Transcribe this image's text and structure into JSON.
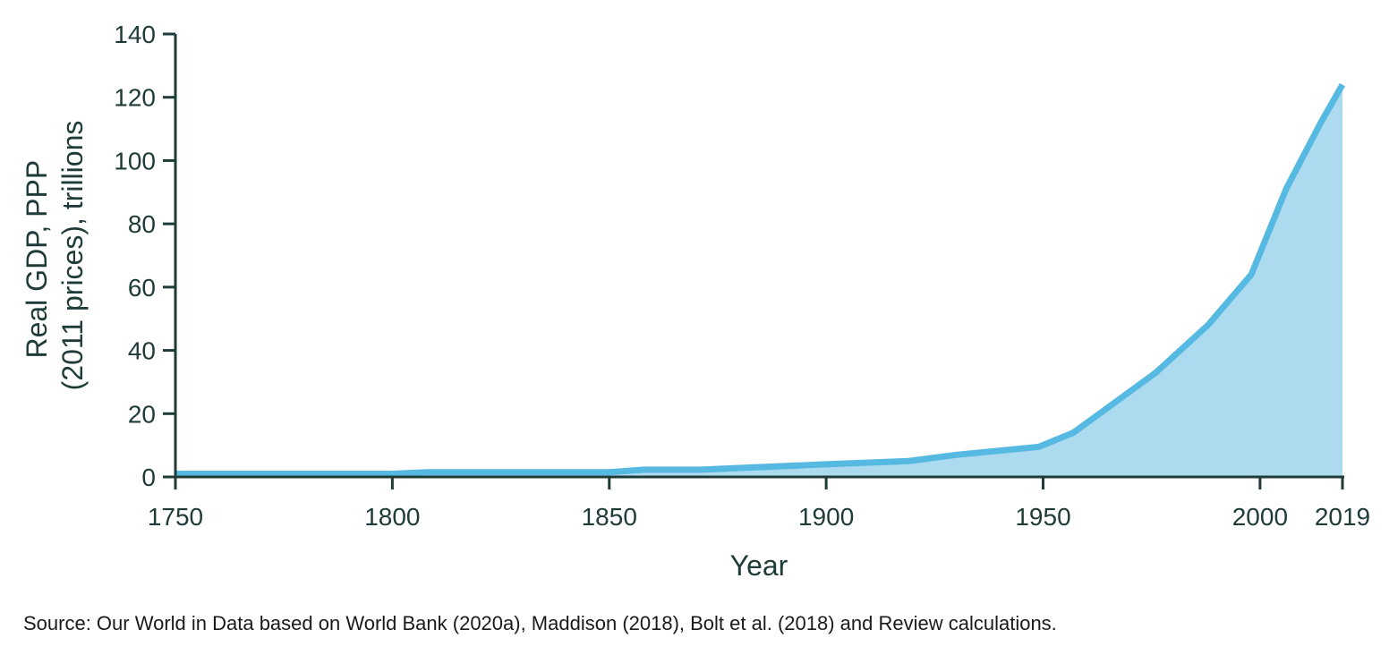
{
  "chart_data": {
    "type": "area",
    "ylabel_lines": [
      "Real GDP, PPP",
      "(2011 prices), trillions"
    ],
    "xlabel": "Year",
    "xlim": [
      1750,
      2019
    ],
    "ylim": [
      0,
      140
    ],
    "x_ticks": [
      1750,
      1800,
      1850,
      1900,
      1950,
      2000,
      2019
    ],
    "y_ticks": [
      0,
      20,
      40,
      60,
      80,
      100,
      120,
      140
    ],
    "grid": false,
    "colors": {
      "line": "#56b9e1",
      "fill": "#acdbf0",
      "axis": "#1f3b38"
    },
    "series": [
      {
        "x": [
          1750,
          1800,
          1808,
          1850,
          1858,
          1871,
          1900,
          1919,
          1930,
          1949,
          1957,
          1966,
          1976,
          1988,
          1998,
          2006,
          2014,
          2019
        ],
        "y": [
          1,
          1,
          1.5,
          1.5,
          2.3,
          2.3,
          4,
          5,
          7,
          9.5,
          14,
          23,
          33,
          48,
          64,
          91,
          112,
          124
        ]
      }
    ]
  },
  "source_note": "Source: Our World in Data based on World Bank (2020a), Maddison (2018), Bolt et al. (2018) and Review calculations."
}
